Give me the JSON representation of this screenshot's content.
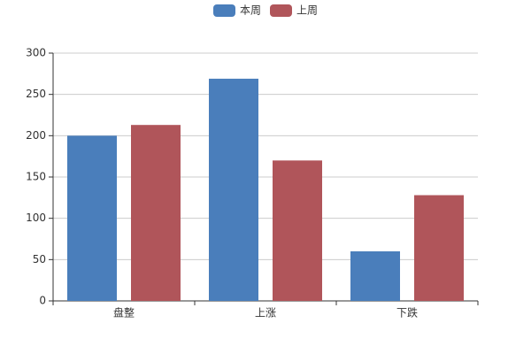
{
  "chart_data": {
    "type": "bar",
    "categories": [
      "盘整",
      "上涨",
      "下跌"
    ],
    "series": [
      {
        "name": "本周",
        "color": "#4a7ebb",
        "values": [
          200,
          269,
          60
        ]
      },
      {
        "name": "上周",
        "color": "#b0555a",
        "values": [
          213,
          170,
          128
        ]
      }
    ],
    "ylim": [
      0,
      300
    ],
    "yticks": [
      0,
      50,
      100,
      150,
      200,
      250,
      300
    ],
    "grid": true,
    "legend": "top"
  }
}
